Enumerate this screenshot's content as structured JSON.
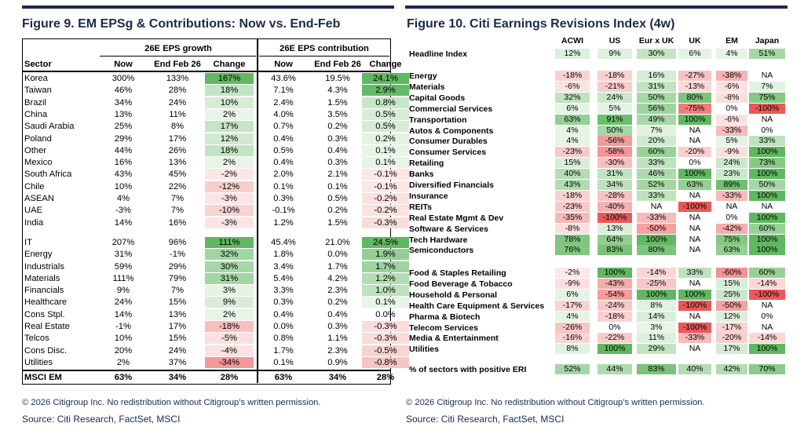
{
  "fig9": {
    "title": "Figure 9. EM EPSg & Contributions: Now vs. End-Feb",
    "group1": "26E EPS growth",
    "group2": "26E EPS contribution",
    "headers": [
      "Sector",
      "Now",
      "End Feb 26",
      "Change",
      "Now",
      "End Feb 26",
      "Change"
    ],
    "rows": [
      [
        "Korea",
        "300%",
        "133%",
        "167%",
        "43.6%",
        "19.5%",
        "24.1%"
      ],
      [
        "Taiwan",
        "46%",
        "28%",
        "18%",
        "7.1%",
        "4.3%",
        "2.9%"
      ],
      [
        "Brazil",
        "34%",
        "24%",
        "10%",
        "2.4%",
        "1.5%",
        "0.8%"
      ],
      [
        "China",
        "13%",
        "11%",
        "2%",
        "4.0%",
        "3.5%",
        "0.5%"
      ],
      [
        "Saudi Arabia",
        "25%",
        "8%",
        "17%",
        "0.7%",
        "0.2%",
        "0.5%"
      ],
      [
        "Poland",
        "29%",
        "17%",
        "12%",
        "0.4%",
        "0.3%",
        "0.2%"
      ],
      [
        "Other",
        "44%",
        "26%",
        "18%",
        "0.5%",
        "0.4%",
        "0.1%"
      ],
      [
        "Mexico",
        "16%",
        "13%",
        "2%",
        "0.4%",
        "0.3%",
        "0.1%"
      ],
      [
        "South Africa",
        "43%",
        "45%",
        "-2%",
        "2.0%",
        "2.1%",
        "-0.1%"
      ],
      [
        "Chile",
        "10%",
        "22%",
        "-12%",
        "0.1%",
        "0.1%",
        "-0.1%"
      ],
      [
        "ASEAN",
        "4%",
        "7%",
        "-3%",
        "0.3%",
        "0.5%",
        "-0.2%"
      ],
      [
        "UAE",
        "-3%",
        "7%",
        "-10%",
        "-0.1%",
        "0.2%",
        "-0.2%"
      ],
      [
        "India",
        "14%",
        "16%",
        "-3%",
        "1.2%",
        "1.5%",
        "-0.3%"
      ],
      [
        "IT",
        "207%",
        "96%",
        "111%",
        "45.4%",
        "21.0%",
        "24.5%"
      ],
      [
        "Energy",
        "31%",
        "-1%",
        "32%",
        "1.8%",
        "0.0%",
        "1.9%"
      ],
      [
        "Industrials",
        "59%",
        "29%",
        "30%",
        "3.4%",
        "1.7%",
        "1.7%"
      ],
      [
        "Materials",
        "111%",
        "79%",
        "31%",
        "5.4%",
        "4.2%",
        "1.2%"
      ],
      [
        "Financials",
        "9%",
        "7%",
        "3%",
        "3.3%",
        "2.3%",
        "1.0%"
      ],
      [
        "Healthcare",
        "24%",
        "15%",
        "9%",
        "0.3%",
        "0.2%",
        "0.1%"
      ],
      [
        "Cons Stpl.",
        "14%",
        "13%",
        "2%",
        "0.4%",
        "0.4%",
        "0.0%"
      ],
      [
        "Real Estate",
        "-1%",
        "17%",
        "-18%",
        "0.0%",
        "0.3%",
        "-0.3%"
      ],
      [
        "Telcos",
        "10%",
        "15%",
        "-5%",
        "0.8%",
        "1.1%",
        "-0.3%"
      ],
      [
        "Cons Disc.",
        "20%",
        "24%",
        "-4%",
        "1.7%",
        "2.3%",
        "-0.5%"
      ],
      [
        "Utilities",
        "2%",
        "37%",
        "-34%",
        "0.1%",
        "0.9%",
        "-0.8%"
      ]
    ],
    "total": [
      "MSCI EM",
      "63%",
      "34%",
      "28%",
      "63%",
      "34%",
      "28%"
    ],
    "copyright": "© 2026 Citigroup Inc. No redistribution without Citigroup’s written permission.",
    "source": "Source: Citi Research, FactSet, MSCI"
  },
  "fig10": {
    "title": "Figure 10. Citi Earnings Revisions Index (4w)",
    "columns": [
      "ACWI",
      "US",
      "Eur x UK",
      "UK",
      "EM",
      "Japan"
    ],
    "headline": [
      "Headline Index",
      "12%",
      "9%",
      "30%",
      "6%",
      "4%",
      "51%"
    ],
    "block1": [
      [
        "Energy",
        "-18%",
        "-18%",
        "16%",
        "-27%",
        "-38%",
        "NA"
      ],
      [
        "Materials",
        "-6%",
        "-21%",
        "31%",
        "-13%",
        "-6%",
        "7%"
      ],
      [
        "Capital Goods",
        "32%",
        "24%",
        "50%",
        "80%",
        "-8%",
        "75%"
      ],
      [
        "Commercial Services",
        "6%",
        "5%",
        "56%",
        "-75%",
        "0%",
        "-100%"
      ],
      [
        "Transportation",
        "63%",
        "91%",
        "49%",
        "100%",
        "-6%",
        "NA"
      ],
      [
        "Autos & Components",
        "4%",
        "50%",
        "7%",
        "NA",
        "-33%",
        "0%"
      ],
      [
        "Consumer Durables",
        "4%",
        "-56%",
        "20%",
        "NA",
        "5%",
        "33%"
      ],
      [
        "Consumer Services",
        "-23%",
        "-58%",
        "60%",
        "-20%",
        "-9%",
        "100%"
      ],
      [
        "Retailing",
        "15%",
        "-30%",
        "33%",
        "0%",
        "24%",
        "73%"
      ],
      [
        "Banks",
        "40%",
        "31%",
        "46%",
        "100%",
        "23%",
        "100%"
      ],
      [
        "Diversified Financials",
        "43%",
        "34%",
        "52%",
        "63%",
        "89%",
        "50%"
      ],
      [
        "Insurance",
        "-18%",
        "-28%",
        "33%",
        "NA",
        "-33%",
        "100%"
      ],
      [
        "REITs",
        "-23%",
        "-40%",
        "NA",
        "-100%",
        "NA",
        "NA"
      ],
      [
        "Real Estate Mgmt & Dev",
        "-35%",
        "-100%",
        "-33%",
        "NA",
        "0%",
        "100%"
      ],
      [
        "Software & Services",
        "-8%",
        "13%",
        "-50%",
        "NA",
        "-42%",
        "60%"
      ],
      [
        "Tech Hardware",
        "78%",
        "64%",
        "100%",
        "NA",
        "75%",
        "100%"
      ],
      [
        "Semiconductors",
        "76%",
        "83%",
        "80%",
        "NA",
        "63%",
        "100%"
      ]
    ],
    "block2": [
      [
        "Food & Staples Retailing",
        "-2%",
        "100%",
        "-14%",
        "33%",
        "-60%",
        "60%"
      ],
      [
        "Food Beverage & Tobacco",
        "-9%",
        "-43%",
        "-25%",
        "NA",
        "15%",
        "-14%"
      ],
      [
        "Household & Personal",
        "6%",
        "-54%",
        "100%",
        "100%",
        "25%",
        "-100%"
      ],
      [
        "Health Care Equipment & Services",
        "-17%",
        "-24%",
        "8%",
        "-100%",
        "-50%",
        "NA"
      ],
      [
        "Pharma & Biotech",
        "4%",
        "-18%",
        "14%",
        "NA",
        "12%",
        "0%"
      ],
      [
        "Telecom Services",
        "-26%",
        "0%",
        "3%",
        "-100%",
        "-17%",
        "NA"
      ],
      [
        "Media & Entertainment",
        "-16%",
        "-22%",
        "11%",
        "-33%",
        "-20%",
        "-14%"
      ],
      [
        "Utilities",
        "8%",
        "100%",
        "29%",
        "NA",
        "17%",
        "100%"
      ]
    ],
    "positive": [
      "% of sectors with positive ERI",
      "52%",
      "44%",
      "83%",
      "40%",
      "42%",
      "70%"
    ],
    "copyright": "© 2026 Citigroup Inc. No redistribution without Citigroup’s written permission.",
    "source": "Source: Citi Research, FactSet, MSCI"
  }
}
